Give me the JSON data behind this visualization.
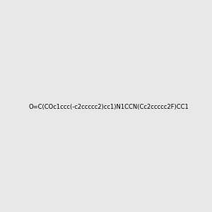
{
  "smiles": "O=C(COc1ccc(-c2ccccc2)cc1)N1CCN(Cc2ccccc2F)CC1",
  "image_size": 300,
  "background_color": "#e8e8e8",
  "atom_colors": {
    "N": "#0000ff",
    "O": "#ff0000",
    "F": "#ff00ff"
  },
  "title": ""
}
